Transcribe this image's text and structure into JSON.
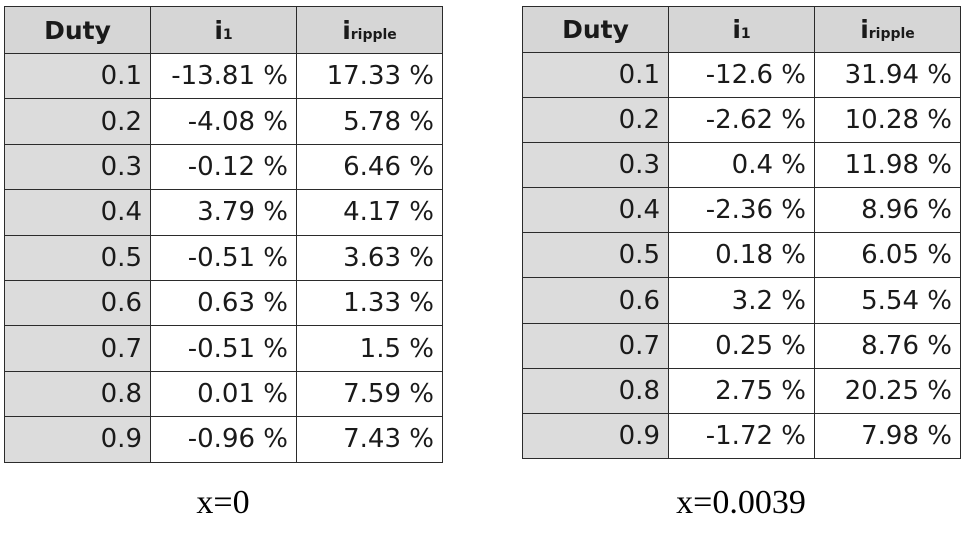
{
  "tables": [
    {
      "header": {
        "duty": "Duty",
        "i1_main": "i",
        "i1_sub": "1",
        "ir_main": "i",
        "ir_sub": "ripple"
      },
      "rows": [
        {
          "duty": "0.1",
          "i1": "-13.81 %",
          "ripple": "17.33 %"
        },
        {
          "duty": "0.2",
          "i1": "-4.08 %",
          "ripple": "5.78 %"
        },
        {
          "duty": "0.3",
          "i1": "-0.12 %",
          "ripple": "6.46 %"
        },
        {
          "duty": "0.4",
          "i1": "3.79 %",
          "ripple": "4.17 %"
        },
        {
          "duty": "0.5",
          "i1": "-0.51 %",
          "ripple": "3.63 %"
        },
        {
          "duty": "0.6",
          "i1": "0.63 %",
          "ripple": "1.33 %"
        },
        {
          "duty": "0.7",
          "i1": "-0.51 %",
          "ripple": "1.5 %"
        },
        {
          "duty": "0.8",
          "i1": "0.01 %",
          "ripple": "7.59 %"
        },
        {
          "duty": "0.9",
          "i1": "-0.96 %",
          "ripple": "7.43 %"
        }
      ],
      "caption": "x=0"
    },
    {
      "header": {
        "duty": "Duty",
        "i1_main": "i",
        "i1_sub": "1",
        "ir_main": "i",
        "ir_sub": "ripple"
      },
      "rows": [
        {
          "duty": "0.1",
          "i1": "-12.6 %",
          "ripple": "31.94 %"
        },
        {
          "duty": "0.2",
          "i1": "-2.62 %",
          "ripple": "10.28 %"
        },
        {
          "duty": "0.3",
          "i1": "0.4 %",
          "ripple": "11.98 %"
        },
        {
          "duty": "0.4",
          "i1": "-2.36 %",
          "ripple": "8.96 %"
        },
        {
          "duty": "0.5",
          "i1": "0.18 %",
          "ripple": "6.05 %"
        },
        {
          "duty": "0.6",
          "i1": "3.2 %",
          "ripple": "5.54 %"
        },
        {
          "duty": "0.7",
          "i1": "0.25 %",
          "ripple": "8.76 %"
        },
        {
          "duty": "0.8",
          "i1": "2.75 %",
          "ripple": "20.25 %"
        },
        {
          "duty": "0.9",
          "i1": "-1.72 %",
          "ripple": "7.98 %"
        }
      ],
      "caption": "x=0.0039"
    }
  ]
}
